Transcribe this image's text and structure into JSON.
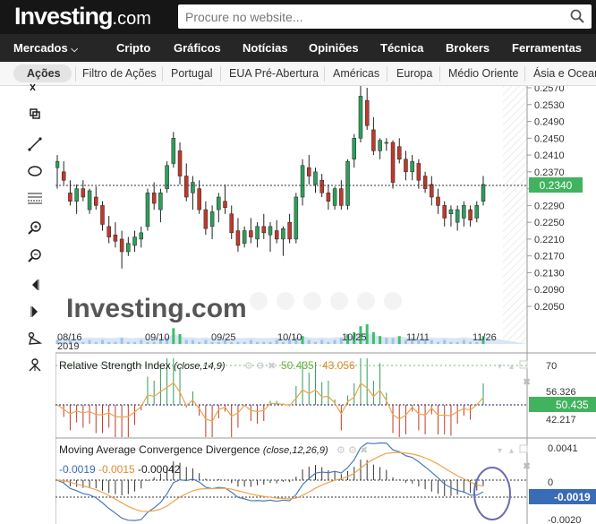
{
  "header": {
    "logo_main": "Investing",
    "logo_suffix": ".com",
    "search_placeholder": "Procure no website..."
  },
  "nav": [
    "Mercados",
    "Cripto",
    "Gráficos",
    "Notícias",
    "Opiniões",
    "Técnica",
    "Brokers",
    "Ferramentas"
  ],
  "subnav": [
    "Ações",
    "Filtro de Ações",
    "Portugal",
    "EUA Pré-Abertura",
    "Américas",
    "Europa",
    "Médio Oriente",
    "Ásia e Oceania"
  ],
  "toolbar_icons": [
    "crosshair-icon",
    "magnet-icon",
    "trend-line-icon",
    "ellipse-icon",
    "fibonacci-icon",
    "zoom-in-icon",
    "zoom-out-icon",
    "scroll-left-icon",
    "scroll-right-icon",
    "measure-icon",
    "settings-icon"
  ],
  "colors": {
    "up": "#2e9e5b",
    "down": "#c0392b",
    "price_badge": "#41b35e",
    "rsi_line": "#f0a34b",
    "macd_line": "#4a7ab8",
    "signal_line": "#f0a34b",
    "highlight_circle": "#6a6ab4"
  },
  "chart_data": {
    "type": "candlestick",
    "price_panel": {
      "y_ticks": [
        "0.2570",
        "0.2530",
        "0.2490",
        "0.2450",
        "0.2410",
        "0.2370",
        "0.2330",
        "0.2290",
        "0.2250",
        "0.2210",
        "0.2170",
        "0.2130",
        "0.2090",
        "0.2050"
      ],
      "x_ticks": [
        "08/16\n2019",
        "09/10",
        "09/25",
        "10/10",
        "10/25",
        "11/11",
        "11/26"
      ],
      "current_price": "0.2340",
      "watermark": "Investing.com",
      "candles": [
        {
          "o": 0.238,
          "h": 0.241,
          "l": 0.233,
          "c": 0.2395
        },
        {
          "o": 0.237,
          "h": 0.2395,
          "l": 0.234,
          "c": 0.235
        },
        {
          "o": 0.232,
          "h": 0.235,
          "l": 0.229,
          "c": 0.23
        },
        {
          "o": 0.23,
          "h": 0.234,
          "l": 0.227,
          "c": 0.233
        },
        {
          "o": 0.233,
          "h": 0.235,
          "l": 0.23,
          "c": 0.231
        },
        {
          "o": 0.228,
          "h": 0.233,
          "l": 0.227,
          "c": 0.2325
        },
        {
          "o": 0.231,
          "h": 0.2335,
          "l": 0.228,
          "c": 0.229
        },
        {
          "o": 0.229,
          "h": 0.23,
          "l": 0.223,
          "c": 0.2245
        },
        {
          "o": 0.224,
          "h": 0.2265,
          "l": 0.22,
          "c": 0.2215
        },
        {
          "o": 0.222,
          "h": 0.225,
          "l": 0.219,
          "c": 0.2205
        },
        {
          "o": 0.221,
          "h": 0.223,
          "l": 0.214,
          "c": 0.218
        },
        {
          "o": 0.218,
          "h": 0.2215,
          "l": 0.217,
          "c": 0.22
        },
        {
          "o": 0.2195,
          "h": 0.223,
          "l": 0.218,
          "c": 0.2215
        },
        {
          "o": 0.221,
          "h": 0.224,
          "l": 0.219,
          "c": 0.2225
        },
        {
          "o": 0.224,
          "h": 0.233,
          "l": 0.223,
          "c": 0.232
        },
        {
          "o": 0.232,
          "h": 0.2345,
          "l": 0.228,
          "c": 0.2295
        },
        {
          "o": 0.228,
          "h": 0.233,
          "l": 0.225,
          "c": 0.232
        },
        {
          "o": 0.233,
          "h": 0.2395,
          "l": 0.232,
          "c": 0.2385
        },
        {
          "o": 0.239,
          "h": 0.2465,
          "l": 0.238,
          "c": 0.245
        },
        {
          "o": 0.242,
          "h": 0.244,
          "l": 0.234,
          "c": 0.236
        },
        {
          "o": 0.236,
          "h": 0.239,
          "l": 0.23,
          "c": 0.231
        },
        {
          "o": 0.232,
          "h": 0.236,
          "l": 0.228,
          "c": 0.2345
        },
        {
          "o": 0.233,
          "h": 0.235,
          "l": 0.227,
          "c": 0.228
        },
        {
          "o": 0.228,
          "h": 0.23,
          "l": 0.222,
          "c": 0.2235
        },
        {
          "o": 0.224,
          "h": 0.229,
          "l": 0.221,
          "c": 0.2275
        },
        {
          "o": 0.228,
          "h": 0.232,
          "l": 0.225,
          "c": 0.231
        },
        {
          "o": 0.23,
          "h": 0.234,
          "l": 0.227,
          "c": 0.2285
        },
        {
          "o": 0.227,
          "h": 0.229,
          "l": 0.221,
          "c": 0.2225
        },
        {
          "o": 0.223,
          "h": 0.226,
          "l": 0.218,
          "c": 0.2195
        },
        {
          "o": 0.22,
          "h": 0.224,
          "l": 0.219,
          "c": 0.223
        },
        {
          "o": 0.223,
          "h": 0.226,
          "l": 0.22,
          "c": 0.2215
        },
        {
          "o": 0.221,
          "h": 0.225,
          "l": 0.219,
          "c": 0.224
        },
        {
          "o": 0.224,
          "h": 0.227,
          "l": 0.221,
          "c": 0.2225
        },
        {
          "o": 0.222,
          "h": 0.225,
          "l": 0.218,
          "c": 0.224
        },
        {
          "o": 0.223,
          "h": 0.2255,
          "l": 0.22,
          "c": 0.221
        },
        {
          "o": 0.221,
          "h": 0.224,
          "l": 0.217,
          "c": 0.2235
        },
        {
          "o": 0.225,
          "h": 0.227,
          "l": 0.22,
          "c": 0.221
        },
        {
          "o": 0.221,
          "h": 0.232,
          "l": 0.22,
          "c": 0.231
        },
        {
          "o": 0.231,
          "h": 0.24,
          "l": 0.229,
          "c": 0.2385
        },
        {
          "o": 0.238,
          "h": 0.241,
          "l": 0.234,
          "c": 0.236
        },
        {
          "o": 0.234,
          "h": 0.238,
          "l": 0.232,
          "c": 0.237
        },
        {
          "o": 0.235,
          "h": 0.2365,
          "l": 0.231,
          "c": 0.232
        },
        {
          "o": 0.232,
          "h": 0.234,
          "l": 0.228,
          "c": 0.23
        },
        {
          "o": 0.229,
          "h": 0.2335,
          "l": 0.228,
          "c": 0.233
        },
        {
          "o": 0.233,
          "h": 0.235,
          "l": 0.228,
          "c": 0.229
        },
        {
          "o": 0.229,
          "h": 0.24,
          "l": 0.228,
          "c": 0.2395
        },
        {
          "o": 0.24,
          "h": 0.246,
          "l": 0.238,
          "c": 0.245
        },
        {
          "o": 0.245,
          "h": 0.259,
          "l": 0.244,
          "c": 0.255
        },
        {
          "o": 0.254,
          "h": 0.257,
          "l": 0.247,
          "c": 0.248
        },
        {
          "o": 0.247,
          "h": 0.25,
          "l": 0.241,
          "c": 0.242
        },
        {
          "o": 0.242,
          "h": 0.245,
          "l": 0.24,
          "c": 0.2445
        },
        {
          "o": 0.244,
          "h": 0.245,
          "l": 0.242,
          "c": 0.244
        },
        {
          "o": 0.244,
          "h": 0.2445,
          "l": 0.233,
          "c": 0.2345
        },
        {
          "o": 0.243,
          "h": 0.245,
          "l": 0.239,
          "c": 0.24
        },
        {
          "o": 0.24,
          "h": 0.242,
          "l": 0.235,
          "c": 0.237
        },
        {
          "o": 0.237,
          "h": 0.241,
          "l": 0.235,
          "c": 0.2395
        },
        {
          "o": 0.239,
          "h": 0.24,
          "l": 0.233,
          "c": 0.235
        },
        {
          "o": 0.236,
          "h": 0.237,
          "l": 0.232,
          "c": 0.233
        },
        {
          "o": 0.234,
          "h": 0.236,
          "l": 0.229,
          "c": 0.231
        },
        {
          "o": 0.231,
          "h": 0.233,
          "l": 0.227,
          "c": 0.229
        },
        {
          "o": 0.229,
          "h": 0.23,
          "l": 0.224,
          "c": 0.226
        },
        {
          "o": 0.227,
          "h": 0.229,
          "l": 0.224,
          "c": 0.228
        },
        {
          "o": 0.225,
          "h": 0.229,
          "l": 0.223,
          "c": 0.228
        },
        {
          "o": 0.226,
          "h": 0.23,
          "l": 0.224,
          "c": 0.229
        },
        {
          "o": 0.228,
          "h": 0.229,
          "l": 0.224,
          "c": 0.2255
        },
        {
          "o": 0.226,
          "h": 0.23,
          "l": 0.225,
          "c": 0.229
        },
        {
          "o": 0.23,
          "h": 0.236,
          "l": 0.229,
          "c": 0.234
        }
      ],
      "volume": [
        2,
        1,
        2,
        1,
        1,
        2,
        1,
        2,
        1,
        1,
        3,
        1,
        1,
        2,
        1,
        1,
        2,
        3,
        8,
        5,
        2,
        2,
        1,
        2,
        1,
        1,
        2,
        1,
        1,
        1,
        2,
        1,
        1,
        1,
        2,
        1,
        2,
        3,
        4,
        2,
        1,
        2,
        1,
        2,
        3,
        5,
        6,
        9,
        10,
        6,
        4,
        3,
        3,
        4,
        2,
        3,
        2,
        2,
        2,
        1,
        2,
        1,
        1,
        2,
        1,
        1,
        4
      ]
    },
    "rsi_panel": {
      "label": "Relative Strength Index",
      "params": "(close,14,9)",
      "value1": "50.435",
      "value2": "43.056",
      "y_ticks": [
        "70",
        "56.326",
        "50.435",
        "42.217"
      ],
      "current": "50.435"
    },
    "macd_panel": {
      "label": "Moving Average Convergence Divergence",
      "params": "(close,12,26,9)",
      "macd": "-0.0019",
      "signal": "-0.0015",
      "hist": "-0.00042",
      "y_ticks": [
        "0.0041",
        "0",
        "-0.0019",
        "-0.0020"
      ],
      "current": "-0.0019"
    }
  }
}
